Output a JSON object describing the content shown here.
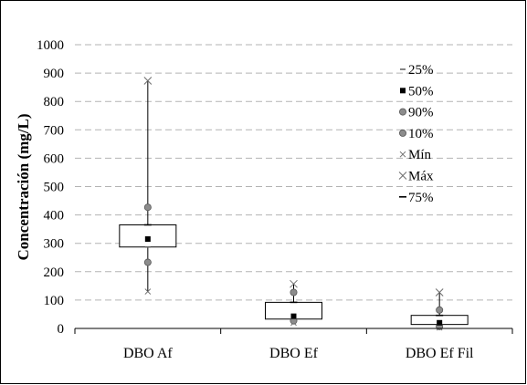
{
  "chart_data": {
    "type": "box",
    "title": "",
    "xlabel": "",
    "ylabel": "Concentración (mg/L)",
    "ylim": [
      0,
      1000
    ],
    "yticks": [
      "0",
      "100",
      "200",
      "300",
      "400",
      "500",
      "600",
      "700",
      "800",
      "900",
      "1000"
    ],
    "grid": "horizontal-dashed",
    "legend_position": "top-right inside",
    "categories": [
      "DBO Af",
      "DBO Ef",
      "DBO Ef Fil"
    ],
    "series": [
      {
        "name": "25%",
        "values": [
          287,
          33,
          14
        ]
      },
      {
        "name": "50%",
        "values": [
          315,
          43,
          20
        ]
      },
      {
        "name": "90%",
        "values": [
          427,
          127,
          65
        ]
      },
      {
        "name": "10%",
        "values": [
          233,
          27,
          7
        ]
      },
      {
        "name": "Mín",
        "values": [
          130,
          20,
          3
        ]
      },
      {
        "name": "Máx",
        "values": [
          873,
          157,
          127
        ]
      },
      {
        "name": "75%",
        "values": [
          365,
          92,
          46
        ]
      }
    ]
  },
  "legend": [
    {
      "label": "25%",
      "marker": "dash-small"
    },
    {
      "label": "50%",
      "marker": "square"
    },
    {
      "label": "90%",
      "marker": "circle"
    },
    {
      "label": "10%",
      "marker": "circle"
    },
    {
      "label": "Mín",
      "marker": "x-small"
    },
    {
      "label": "Máx",
      "marker": "x-large"
    },
    {
      "label": "75%",
      "marker": "dash-large"
    }
  ],
  "colors": {
    "circle_fill": "#8c8c8c",
    "circle_stroke": "#555555",
    "grid": "#b3b3b3",
    "x_marker": "#6e6e6e"
  }
}
